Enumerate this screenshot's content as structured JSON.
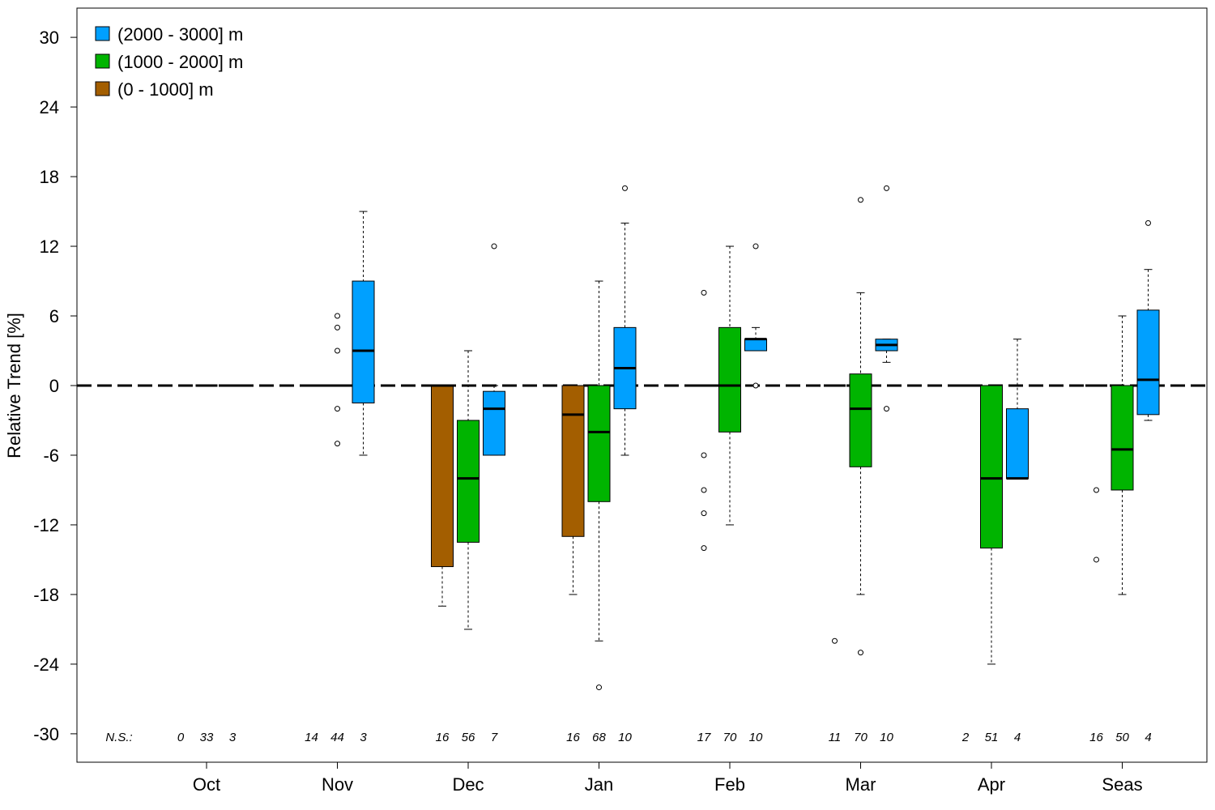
{
  "chart_data": {
    "type": "box",
    "ylabel": "Relative Trend [%]",
    "ylim": [
      -32.2,
      32.6
    ],
    "yticks": [
      -30,
      -24,
      -18,
      -12,
      -6,
      0,
      6,
      12,
      18,
      24,
      30
    ],
    "reference_line": 0,
    "categories": [
      "Oct",
      "Nov",
      "Dec",
      "Jan",
      "Feb",
      "Mar",
      "Apr",
      "Seas"
    ],
    "ns_label": "N.S.:",
    "legend_placement": "top-left",
    "series": [
      {
        "name": "(0 - 1000] m",
        "color": "#A35E00",
        "boxes": [
          {
            "category": "Oct",
            "n": "0",
            "stats": null,
            "outliers": []
          },
          {
            "category": "Nov",
            "n": "14",
            "stats": [
              0,
              0,
              0,
              0,
              0
            ],
            "outliers": []
          },
          {
            "category": "Dec",
            "n": "16",
            "stats": [
              -19,
              -15.6,
              0,
              0,
              0
            ],
            "outliers": []
          },
          {
            "category": "Jan",
            "n": "16",
            "stats": [
              -18,
              -13,
              -2.5,
              0,
              0
            ],
            "outliers": []
          },
          {
            "category": "Feb",
            "n": "17",
            "stats": [
              0,
              0,
              0,
              0,
              0
            ],
            "outliers": [
              8,
              -6,
              -9,
              -11,
              -14
            ]
          },
          {
            "category": "Mar",
            "n": "11",
            "stats": [
              0,
              0,
              0,
              0,
              0
            ],
            "outliers": [
              -22
            ]
          },
          {
            "category": "Apr",
            "n": "2",
            "stats": [
              0,
              0,
              0,
              0,
              0
            ],
            "outliers": []
          },
          {
            "category": "Seas",
            "n": "16",
            "stats": [
              0,
              0,
              0,
              0,
              0
            ],
            "outliers": [
              -9,
              -15
            ]
          }
        ]
      },
      {
        "name": "(1000 - 2000] m",
        "color": "#00B400",
        "boxes": [
          {
            "category": "Oct",
            "n": "33",
            "stats": [
              0,
              0,
              0,
              0,
              0
            ],
            "outliers": []
          },
          {
            "category": "Nov",
            "n": "44",
            "stats": [
              0,
              0,
              0,
              0,
              0
            ],
            "outliers": [
              6,
              5,
              3,
              -2,
              -5
            ]
          },
          {
            "category": "Dec",
            "n": "56",
            "stats": [
              -21,
              -13.5,
              -8,
              -3,
              3
            ],
            "outliers": []
          },
          {
            "category": "Jan",
            "n": "68",
            "stats": [
              -22,
              -10,
              -4,
              0,
              9
            ],
            "outliers": [
              -26
            ]
          },
          {
            "category": "Feb",
            "n": "70",
            "stats": [
              -12,
              -4,
              0,
              5,
              12
            ],
            "outliers": []
          },
          {
            "category": "Mar",
            "n": "70",
            "stats": [
              -18,
              -7,
              -2,
              1,
              8
            ],
            "outliers": [
              16,
              -23
            ]
          },
          {
            "category": "Apr",
            "n": "51",
            "stats": [
              -24,
              -14,
              -8,
              0,
              0
            ],
            "outliers": []
          },
          {
            "category": "Seas",
            "n": "50",
            "stats": [
              -18,
              -9,
              -5.5,
              0,
              6
            ],
            "outliers": []
          }
        ]
      },
      {
        "name": "(2000 - 3000] m",
        "color": "#00A0FF",
        "boxes": [
          {
            "category": "Oct",
            "n": "3",
            "stats": [
              0,
              0,
              0,
              0,
              0
            ],
            "outliers": []
          },
          {
            "category": "Nov",
            "n": "3",
            "stats": [
              -6,
              -1.5,
              3,
              9,
              15
            ],
            "outliers": []
          },
          {
            "category": "Dec",
            "n": "7",
            "stats": [
              -6,
              -6,
              -2,
              -0.5,
              0
            ],
            "outliers": [
              12
            ]
          },
          {
            "category": "Jan",
            "n": "10",
            "stats": [
              -6,
              -2,
              1.5,
              5,
              14
            ],
            "outliers": [
              17
            ]
          },
          {
            "category": "Feb",
            "n": "10",
            "stats": [
              3,
              3,
              4,
              4,
              5
            ],
            "outliers": [
              12,
              0
            ]
          },
          {
            "category": "Mar",
            "n": "10",
            "stats": [
              2,
              3,
              3.5,
              4,
              4
            ],
            "outliers": [
              17,
              -2
            ]
          },
          {
            "category": "Apr",
            "n": "4",
            "stats": [
              -8,
              -8,
              -8,
              -2,
              4
            ],
            "outliers": []
          },
          {
            "category": "Seas",
            "n": "4",
            "stats": [
              -3,
              -2.5,
              0.5,
              6.5,
              10
            ],
            "outliers": [
              14
            ]
          }
        ]
      }
    ]
  }
}
